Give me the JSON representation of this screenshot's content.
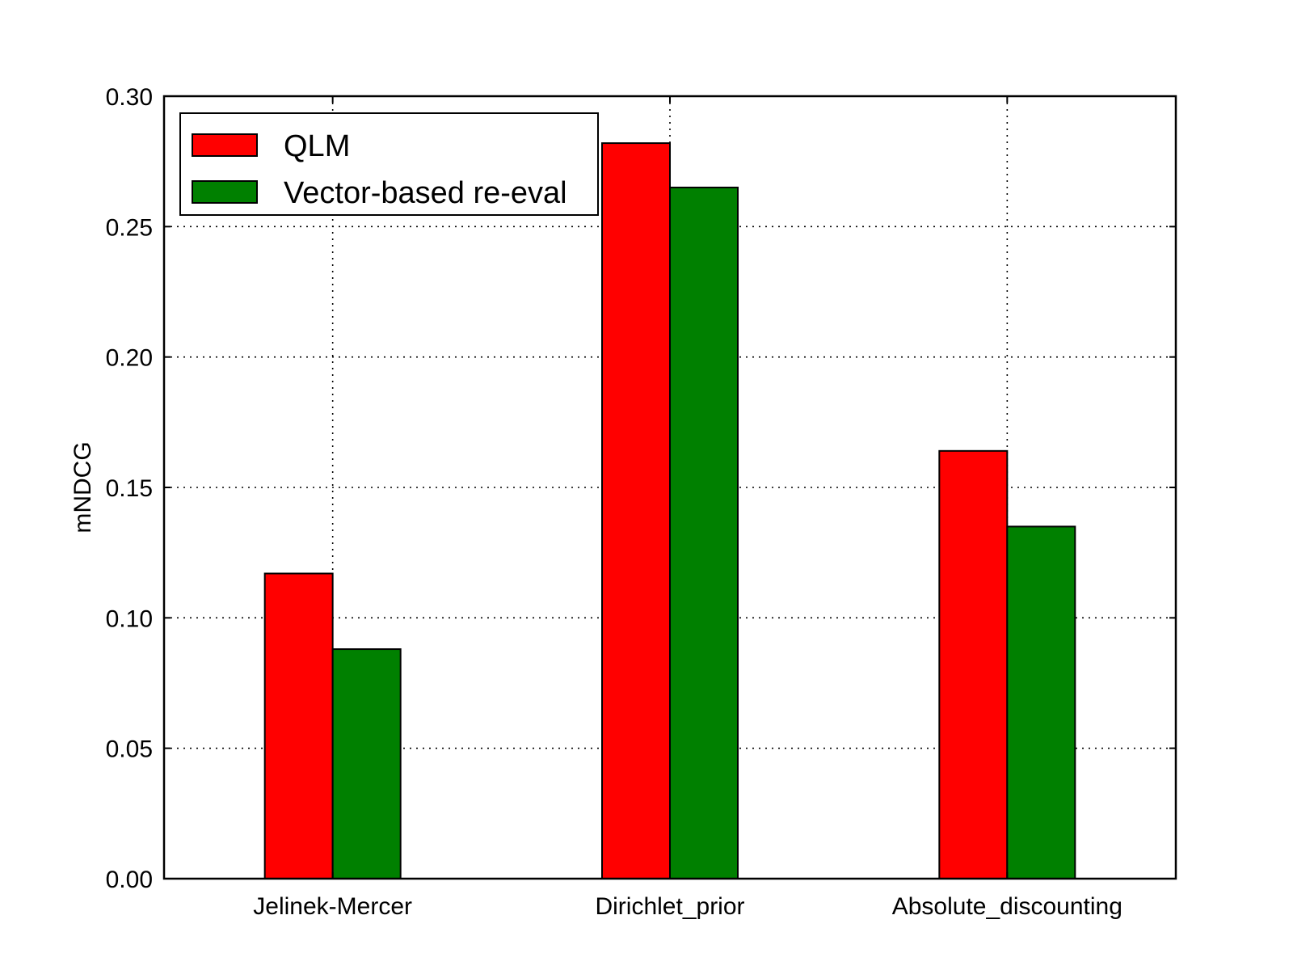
{
  "chart_data": {
    "type": "bar",
    "title": "",
    "xlabel": "",
    "ylabel": "mNDCG",
    "categories": [
      "Jelinek-Mercer",
      "Dirichlet_prior",
      "Absolute_discounting"
    ],
    "series": [
      {
        "name": "QLM",
        "color": "#ff0000",
        "values": [
          0.117,
          0.282,
          0.164
        ]
      },
      {
        "name": "Vector-based re-eval",
        "color": "#008000",
        "values": [
          0.088,
          0.265,
          0.135
        ]
      }
    ],
    "ylim": [
      0,
      0.3
    ],
    "yticks": [
      "0.00",
      "0.05",
      "0.10",
      "0.15",
      "0.20",
      "0.25",
      "0.30"
    ],
    "grid": true,
    "legend_position": "top-left"
  }
}
